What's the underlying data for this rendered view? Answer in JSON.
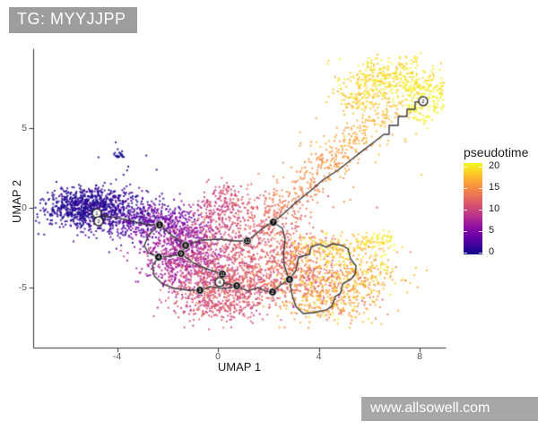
{
  "header": {
    "tag_label": "TG: MYYJJPP"
  },
  "watermark": {
    "text": "www.allsowell.com"
  },
  "colors": {
    "tag_box_bg": "#9d9d9d",
    "watermark_bg": "#a7a7a7",
    "axis_line": "#333333",
    "tick_label": "#555555"
  },
  "chart_data": {
    "type": "scatter",
    "title": "",
    "xlabel": "UMAP 1",
    "ylabel": "UMAP 2",
    "x_ticks": [
      -4,
      0,
      4,
      8
    ],
    "y_ticks": [
      -5,
      0,
      5
    ],
    "xlim": [
      -7.3,
      9.0
    ],
    "ylim": [
      -8.8,
      9.8
    ],
    "grid": false,
    "legend": {
      "title": "pseudotime",
      "position": "right",
      "min": 0,
      "max": 20,
      "ticks": [
        0,
        5,
        10,
        15,
        20
      ],
      "colormap": "plasma",
      "stops": [
        "#0D0887",
        "#41049D",
        "#6A00A8",
        "#8F0DA4",
        "#B12A90",
        "#CC4778",
        "#E16462",
        "#F2844B",
        "#FCA636",
        "#FCCE25",
        "#F0F921"
      ]
    },
    "clusters": [
      {
        "shape": "blob",
        "x": -5.1,
        "y": -0.1,
        "sx": 0.9,
        "sy": 0.55,
        "n": 500,
        "t": 0.6,
        "tj": 0.8
      },
      {
        "shape": "blob",
        "x": -4.0,
        "y": -0.45,
        "sx": 1.1,
        "sy": 0.75,
        "n": 350,
        "t": 1.8,
        "tj": 1.2
      },
      {
        "shape": "blob",
        "x": -5.6,
        "y": 0.4,
        "sx": 0.7,
        "sy": 0.5,
        "n": 120,
        "t": 0.4,
        "tj": 0.4
      },
      {
        "shape": "blob",
        "x": -5.0,
        "y": 0.75,
        "sx": 0.9,
        "sy": 0.35,
        "n": 80,
        "t": 1.2,
        "tj": 0.8
      },
      {
        "shape": "blob",
        "x": -2.6,
        "y": -0.9,
        "sx": 0.8,
        "sy": 0.55,
        "n": 250,
        "t": 3.8,
        "tj": 1.3
      },
      {
        "shape": "blob",
        "x": -3.9,
        "y": 3.3,
        "sx": 0.12,
        "sy": 0.15,
        "n": 22,
        "t": 0.2,
        "tj": 0.2
      },
      {
        "shape": "blob",
        "x": -3.5,
        "y": 2.6,
        "sx": 1.0,
        "sy": 0.8,
        "n": 8,
        "t": 0.5,
        "tj": 0.4
      },
      {
        "shape": "blob",
        "x": -1.6,
        "y": -1.6,
        "sx": 0.75,
        "sy": 0.8,
        "n": 280,
        "t": 6,
        "tj": 1.5
      },
      {
        "shape": "blob",
        "x": -2.2,
        "y": -3.4,
        "sx": 0.6,
        "sy": 0.8,
        "n": 150,
        "t": 7,
        "tj": 1.4
      },
      {
        "shape": "blob",
        "x": -1.0,
        "y": -2.8,
        "sx": 0.75,
        "sy": 0.9,
        "n": 300,
        "t": 7.5,
        "tj": 1.5
      },
      {
        "shape": "blob",
        "x": -0.6,
        "y": -4.2,
        "sx": 0.8,
        "sy": 0.9,
        "n": 320,
        "t": 9.5,
        "tj": 1.5
      },
      {
        "shape": "blob",
        "x": 0.5,
        "y": -5.3,
        "sx": 1.1,
        "sy": 0.75,
        "n": 380,
        "t": 11,
        "tj": 1.3
      },
      {
        "shape": "blob",
        "x": -0.2,
        "y": -6.3,
        "sx": 0.9,
        "sy": 0.5,
        "n": 120,
        "t": 10.5,
        "tj": 1.0
      },
      {
        "shape": "blob",
        "x": 1.6,
        "y": -4.2,
        "sx": 0.9,
        "sy": 0.8,
        "n": 300,
        "t": 12,
        "tj": 1.3
      },
      {
        "shape": "blob",
        "x": 1.0,
        "y": -2.2,
        "sx": 0.9,
        "sy": 0.9,
        "n": 250,
        "t": 11,
        "tj": 1.3
      },
      {
        "shape": "blob",
        "x": -0.1,
        "y": -0.6,
        "sx": 0.55,
        "sy": 0.8,
        "n": 150,
        "t": 10,
        "tj": 1.0
      },
      {
        "shape": "blob",
        "x": 0.3,
        "y": 0.8,
        "sx": 0.4,
        "sy": 0.5,
        "n": 60,
        "t": 10,
        "tj": 1.0
      },
      {
        "shape": "blob",
        "x": 0.9,
        "y": 0.3,
        "sx": 0.8,
        "sy": 0.6,
        "n": 50,
        "t": 11,
        "tj": 1.0
      },
      {
        "shape": "blob",
        "x": 2.1,
        "y": -0.9,
        "sx": 0.5,
        "sy": 0.7,
        "n": 90,
        "t": 12.5,
        "tj": 0.8
      },
      {
        "shape": "path",
        "pts": [
          [
            2.3,
            -0.5
          ],
          [
            3.0,
            0.9
          ],
          [
            3.9,
            2.2
          ],
          [
            4.9,
            3.6
          ],
          [
            5.9,
            4.9
          ],
          [
            6.7,
            5.9
          ],
          [
            7.3,
            6.7
          ]
        ],
        "w": 0.45,
        "n": 330,
        "t0": 13,
        "t1": 17.5,
        "tj": 0.7
      },
      {
        "shape": "path",
        "pts": [
          [
            2.3,
            -0.5
          ],
          [
            3.0,
            0.9
          ],
          [
            3.9,
            2.2
          ],
          [
            4.9,
            3.6
          ],
          [
            5.9,
            4.9
          ],
          [
            6.7,
            5.9
          ]
        ],
        "w": 0.95,
        "n": 110,
        "t0": 13,
        "t1": 17.5,
        "tj": 0.9
      },
      {
        "shape": "path",
        "pts": [
          [
            5.3,
            6.2
          ],
          [
            5.6,
            7.3
          ],
          [
            6.2,
            8.2
          ],
          [
            7.0,
            8.7
          ],
          [
            7.8,
            8.5
          ],
          [
            8.3,
            7.8
          ],
          [
            8.5,
            6.9
          ],
          [
            8.2,
            6.1
          ],
          [
            7.7,
            5.7
          ]
        ],
        "w": 0.55,
        "n": 430,
        "t0": 17.5,
        "t1": 20,
        "tj": 0.8
      },
      {
        "shape": "blob",
        "x": 6.6,
        "y": 7.9,
        "sx": 0.9,
        "sy": 0.7,
        "n": 150,
        "t": 19,
        "tj": 0.9
      },
      {
        "shape": "blob",
        "x": 8.6,
        "y": 7.6,
        "sx": 0.25,
        "sy": 0.5,
        "n": 25,
        "t": 19.5,
        "tj": 0.5
      },
      {
        "shape": "blob",
        "x": 3.0,
        "y": -2.6,
        "sx": 0.55,
        "sy": 0.8,
        "n": 130,
        "t": 12.5,
        "tj": 1.5
      },
      {
        "shape": "blob",
        "x": 3.6,
        "y": -4.3,
        "sx": 0.75,
        "sy": 1.0,
        "n": 280,
        "t": 13.5,
        "tj": 2.2
      },
      {
        "shape": "blob",
        "x": 4.9,
        "y": -4.7,
        "sx": 0.85,
        "sy": 0.95,
        "n": 280,
        "t": 16,
        "tj": 2.0
      },
      {
        "shape": "blob",
        "x": 4.6,
        "y": -2.5,
        "sx": 0.9,
        "sy": 0.45,
        "n": 150,
        "t": 17.5,
        "tj": 1.5
      },
      {
        "shape": "path",
        "pts": [
          [
            5.5,
            -2.1
          ],
          [
            7.0,
            -1.9
          ]
        ],
        "w": 0.25,
        "n": 60,
        "t0": 18.5,
        "t1": 19.5,
        "tj": 0.8
      },
      {
        "shape": "blob",
        "x": 6.2,
        "y": -4.0,
        "sx": 0.7,
        "sy": 0.8,
        "n": 120,
        "t": 17,
        "tj": 2.0
      },
      {
        "shape": "blob",
        "x": 4.2,
        "y": -6.2,
        "sx": 0.9,
        "sy": 0.5,
        "n": 140,
        "t": 15.5,
        "tj": 2.0
      }
    ],
    "trajectory": {
      "color": "#3a3a3a",
      "edges": [
        [
          [
            -4.8,
            -0.34
          ],
          [
            -4.37,
            -0.51
          ],
          [
            -3.84,
            -0.67
          ],
          [
            -3.24,
            -0.9
          ],
          [
            -2.74,
            -1.07
          ],
          [
            -2.31,
            -1.07
          ]
        ],
        [
          [
            -4.73,
            -0.84
          ],
          [
            -4.48,
            -0.62
          ],
          [
            -4.37,
            -0.51
          ]
        ],
        [
          [
            -2.31,
            -1.07
          ],
          [
            -1.99,
            -1.52
          ],
          [
            -1.63,
            -1.97
          ],
          [
            -1.28,
            -2.36
          ]
        ],
        [
          [
            -2.31,
            -1.07
          ],
          [
            -2.74,
            -1.69
          ],
          [
            -2.92,
            -2.36
          ],
          [
            -2.77,
            -2.81
          ],
          [
            -2.35,
            -3.09
          ]
        ],
        [
          [
            -1.28,
            -2.36
          ],
          [
            -1.46,
            -2.87
          ]
        ],
        [
          [
            -1.46,
            -2.87
          ],
          [
            -1.88,
            -3.03
          ],
          [
            -2.35,
            -3.09
          ]
        ],
        [
          [
            -2.35,
            -3.09
          ],
          [
            -2.6,
            -3.65
          ],
          [
            -2.52,
            -4.27
          ],
          [
            -2.2,
            -4.78
          ],
          [
            -1.67,
            -5.06
          ],
          [
            -1.17,
            -5.17
          ],
          [
            -0.71,
            -5.17
          ]
        ],
        [
          [
            -1.46,
            -2.87
          ],
          [
            -1.0,
            -3.43
          ],
          [
            -0.46,
            -3.82
          ],
          [
            0.18,
            -4.16
          ]
        ],
        [
          [
            -1.28,
            -2.36
          ],
          [
            -0.64,
            -2.02
          ],
          [
            0.07,
            -1.97
          ],
          [
            0.68,
            -2.08
          ],
          [
            1.17,
            -2.08
          ]
        ],
        [
          [
            1.17,
            -2.08
          ],
          [
            1.6,
            -1.52
          ],
          [
            1.92,
            -1.12
          ],
          [
            2.2,
            -0.9
          ]
        ],
        [
          [
            -0.71,
            -5.17
          ],
          [
            -0.28,
            -4.94
          ],
          [
            0.18,
            -5.06
          ],
          [
            0.53,
            -5.0
          ],
          [
            0.75,
            -4.89
          ]
        ],
        [
          [
            0.18,
            -4.16
          ],
          [
            0.07,
            -4.66
          ]
        ],
        [
          [
            0.07,
            -4.66
          ],
          [
            0.75,
            -4.89
          ]
        ],
        [
          [
            0.75,
            -4.89
          ],
          [
            1.17,
            -5.22
          ],
          [
            1.6,
            -5.0
          ],
          [
            1.88,
            -5.22
          ],
          [
            2.17,
            -5.28
          ]
        ],
        [
          [
            2.17,
            -5.28
          ],
          [
            2.49,
            -4.83
          ],
          [
            2.84,
            -4.49
          ]
        ],
        [
          [
            2.2,
            -0.9
          ],
          [
            2.56,
            -1.29
          ],
          [
            2.67,
            -2.02
          ],
          [
            2.6,
            -2.87
          ],
          [
            2.63,
            -3.6
          ],
          [
            2.74,
            -4.1
          ],
          [
            2.84,
            -4.49
          ]
        ],
        [
          [
            2.2,
            -0.9
          ],
          [
            2.67,
            -0.28
          ],
          [
            3.09,
            0.34
          ],
          [
            3.63,
            1.01
          ],
          [
            4.16,
            1.74
          ],
          [
            4.76,
            2.36
          ],
          [
            5.3,
            3.03
          ],
          [
            5.76,
            3.6
          ],
          [
            6.22,
            4.16
          ],
          [
            6.58,
            4.61
          ],
          [
            6.79,
            4.61
          ],
          [
            6.79,
            5.17
          ],
          [
            7.15,
            5.17
          ],
          [
            7.15,
            5.73
          ],
          [
            7.5,
            5.73
          ],
          [
            7.5,
            6.18
          ],
          [
            7.82,
            6.18
          ],
          [
            7.82,
            6.63
          ],
          [
            8.14,
            6.69
          ]
        ],
        [
          [
            2.84,
            -4.49
          ],
          [
            3.09,
            -3.93
          ],
          [
            3.2,
            -3.09
          ],
          [
            3.63,
            -2.92
          ],
          [
            3.7,
            -2.42
          ],
          [
            4.05,
            -2.3
          ],
          [
            4.3,
            -2.47
          ],
          [
            4.52,
            -2.25
          ],
          [
            4.94,
            -2.36
          ],
          [
            5.16,
            -2.58
          ],
          [
            5.26,
            -3.2
          ],
          [
            5.48,
            -3.65
          ],
          [
            5.44,
            -4.16
          ],
          [
            5.3,
            -4.44
          ],
          [
            4.94,
            -4.78
          ],
          [
            4.87,
            -5.34
          ],
          [
            4.66,
            -5.56
          ],
          [
            4.52,
            -6.18
          ],
          [
            4.3,
            -6.4
          ],
          [
            3.8,
            -6.57
          ],
          [
            3.38,
            -6.63
          ],
          [
            3.09,
            -6.18
          ],
          [
            2.95,
            -5.51
          ],
          [
            2.88,
            -4.94
          ],
          [
            2.84,
            -4.49
          ]
        ]
      ]
    },
    "nodes": [
      {
        "x": -4.8,
        "y": -0.34,
        "label": "1",
        "type": "white"
      },
      {
        "x": -4.73,
        "y": -0.84,
        "label": "3",
        "type": "white"
      },
      {
        "x": -2.31,
        "y": -1.07,
        "label": "1",
        "type": "black"
      },
      {
        "x": -1.28,
        "y": -2.36,
        "label": "8",
        "type": "black"
      },
      {
        "x": -1.46,
        "y": -2.87,
        "label": "9",
        "type": "black"
      },
      {
        "x": -2.35,
        "y": -3.09,
        "label": "4",
        "type": "black"
      },
      {
        "x": -0.71,
        "y": -5.17,
        "label": "3",
        "type": "black"
      },
      {
        "x": 0.18,
        "y": -4.16,
        "label": "11",
        "type": "black"
      },
      {
        "x": 0.07,
        "y": -4.66,
        "label": "4",
        "type": "white"
      },
      {
        "x": 0.75,
        "y": -4.89,
        "label": "5",
        "type": "black"
      },
      {
        "x": 2.17,
        "y": -5.28,
        "label": "2",
        "type": "black"
      },
      {
        "x": 2.84,
        "y": -4.49,
        "label": "6",
        "type": "black"
      },
      {
        "x": 1.17,
        "y": -2.08,
        "label": "12",
        "type": "black"
      },
      {
        "x": 2.2,
        "y": -0.9,
        "label": "7",
        "type": "black"
      },
      {
        "x": 8.14,
        "y": 6.69,
        "label": "2",
        "type": "white"
      }
    ]
  }
}
